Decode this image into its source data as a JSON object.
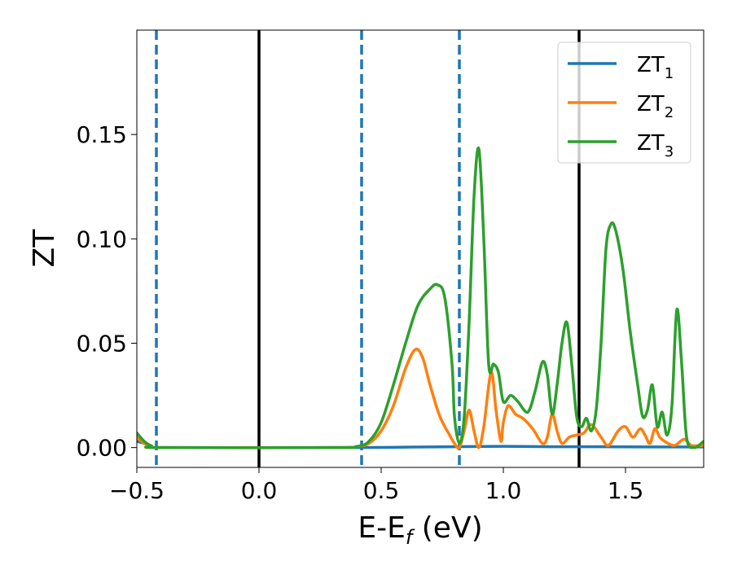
{
  "chart_data": {
    "type": "line",
    "xlabel": {
      "main": "E-E",
      "sub": "f",
      "unit": " (eV)"
    },
    "ylabel": "ZT",
    "xlim": [
      -0.5,
      1.82
    ],
    "ylim": [
      -0.0095,
      0.2
    ],
    "xticks": [
      {
        "value": -0.5,
        "label": "−0.5"
      },
      {
        "value": 0.0,
        "label": "0.0"
      },
      {
        "value": 0.5,
        "label": "0.5"
      },
      {
        "value": 1.0,
        "label": "1.0"
      },
      {
        "value": 1.5,
        "label": "1.5"
      }
    ],
    "yticks": [
      {
        "value": 0.0,
        "label": "0.00"
      },
      {
        "value": 0.05,
        "label": "0.05"
      },
      {
        "value": 0.1,
        "label": "0.10"
      },
      {
        "value": 0.15,
        "label": "0.15"
      }
    ],
    "grid": false,
    "legend_position": "top-right",
    "vlines": [
      {
        "x": -0.42,
        "style": "dashed",
        "color": "#1f77b4"
      },
      {
        "x": 0.0,
        "style": "solid",
        "color": "#000000"
      },
      {
        "x": 0.42,
        "style": "dashed",
        "color": "#1f77b4"
      },
      {
        "x": 0.82,
        "style": "dashed",
        "color": "#1f77b4"
      },
      {
        "x": 1.31,
        "style": "solid",
        "color": "#000000"
      }
    ],
    "series": [
      {
        "name": {
          "main": "ZT",
          "sub": "1"
        },
        "color": "#1f77b4",
        "points": [
          [
            -0.5,
            0.003
          ],
          [
            -0.47,
            0.002
          ],
          [
            -0.44,
            0.0005
          ],
          [
            -0.4,
            0.0
          ],
          [
            0.0,
            0.0
          ],
          [
            0.4,
            0.0
          ],
          [
            0.6,
            0.0002
          ],
          [
            0.8,
            0.0004
          ],
          [
            1.0,
            0.0006
          ],
          [
            1.2,
            0.0004
          ],
          [
            1.4,
            0.0004
          ],
          [
            1.6,
            0.0003
          ],
          [
            1.82,
            0.0003
          ]
        ]
      },
      {
        "name": {
          "main": "ZT",
          "sub": "2"
        },
        "color": "#ff7f0e",
        "points": [
          [
            -0.5,
            0.005
          ],
          [
            -0.47,
            0.002
          ],
          [
            -0.44,
            0.0005
          ],
          [
            -0.4,
            0.0
          ],
          [
            0.3,
            0.0
          ],
          [
            0.4,
            0.0005
          ],
          [
            0.45,
            0.002
          ],
          [
            0.5,
            0.008
          ],
          [
            0.55,
            0.02
          ],
          [
            0.6,
            0.038
          ],
          [
            0.64,
            0.047
          ],
          [
            0.67,
            0.043
          ],
          [
            0.7,
            0.03
          ],
          [
            0.74,
            0.015
          ],
          [
            0.78,
            0.006
          ],
          [
            0.8,
            0.002
          ],
          [
            0.82,
            0.0
          ],
          [
            0.84,
            0.008
          ],
          [
            0.86,
            0.018
          ],
          [
            0.88,
            0.008
          ],
          [
            0.9,
            0.0
          ],
          [
            0.92,
            0.01
          ],
          [
            0.95,
            0.036
          ],
          [
            0.97,
            0.018
          ],
          [
            0.99,
            0.003
          ],
          [
            1.0,
            0.012
          ],
          [
            1.02,
            0.02
          ],
          [
            1.05,
            0.016
          ],
          [
            1.08,
            0.014
          ],
          [
            1.12,
            0.009
          ],
          [
            1.16,
            0.002
          ],
          [
            1.18,
            0.005
          ],
          [
            1.2,
            0.016
          ],
          [
            1.22,
            0.008
          ],
          [
            1.24,
            0.002
          ],
          [
            1.27,
            0.005
          ],
          [
            1.3,
            0.006
          ],
          [
            1.33,
            0.007
          ],
          [
            1.36,
            0.011
          ],
          [
            1.4,
            0.005
          ],
          [
            1.43,
            0.001
          ],
          [
            1.47,
            0.008
          ],
          [
            1.5,
            0.01
          ],
          [
            1.53,
            0.005
          ],
          [
            1.56,
            0.009
          ],
          [
            1.58,
            0.006
          ],
          [
            1.6,
            0.002
          ],
          [
            1.62,
            0.009
          ],
          [
            1.64,
            0.005
          ],
          [
            1.66,
            0.003
          ],
          [
            1.7,
            0.001
          ],
          [
            1.74,
            0.004
          ],
          [
            1.77,
            0.001
          ],
          [
            1.82,
            0.001
          ]
        ]
      },
      {
        "name": {
          "main": "ZT",
          "sub": "3"
        },
        "color": "#2ca02c",
        "points": [
          [
            -0.5,
            0.007
          ],
          [
            -0.47,
            0.003
          ],
          [
            -0.44,
            0.0008
          ],
          [
            -0.4,
            0.0
          ],
          [
            0.3,
            0.0
          ],
          [
            0.4,
            0.0005
          ],
          [
            0.45,
            0.003
          ],
          [
            0.5,
            0.012
          ],
          [
            0.55,
            0.03
          ],
          [
            0.6,
            0.05
          ],
          [
            0.65,
            0.068
          ],
          [
            0.7,
            0.076
          ],
          [
            0.73,
            0.078
          ],
          [
            0.76,
            0.072
          ],
          [
            0.79,
            0.04
          ],
          [
            0.8,
            0.015
          ],
          [
            0.82,
            0.002
          ],
          [
            0.84,
            0.015
          ],
          [
            0.86,
            0.06
          ],
          [
            0.88,
            0.12
          ],
          [
            0.9,
            0.143
          ],
          [
            0.92,
            0.1
          ],
          [
            0.94,
            0.04
          ],
          [
            0.96,
            0.04
          ],
          [
            0.98,
            0.036
          ],
          [
            1.0,
            0.022
          ],
          [
            1.03,
            0.025
          ],
          [
            1.06,
            0.022
          ],
          [
            1.1,
            0.017
          ],
          [
            1.13,
            0.027
          ],
          [
            1.16,
            0.041
          ],
          [
            1.18,
            0.035
          ],
          [
            1.2,
            0.016
          ],
          [
            1.22,
            0.03
          ],
          [
            1.24,
            0.05
          ],
          [
            1.26,
            0.06
          ],
          [
            1.28,
            0.04
          ],
          [
            1.3,
            0.015
          ],
          [
            1.32,
            0.01
          ],
          [
            1.34,
            0.014
          ],
          [
            1.36,
            0.008
          ],
          [
            1.38,
            0.018
          ],
          [
            1.4,
            0.05
          ],
          [
            1.42,
            0.095
          ],
          [
            1.44,
            0.107
          ],
          [
            1.46,
            0.104
          ],
          [
            1.49,
            0.085
          ],
          [
            1.52,
            0.055
          ],
          [
            1.55,
            0.03
          ],
          [
            1.57,
            0.015
          ],
          [
            1.59,
            0.018
          ],
          [
            1.61,
            0.03
          ],
          [
            1.63,
            0.01
          ],
          [
            1.65,
            0.017
          ],
          [
            1.67,
            0.006
          ],
          [
            1.69,
            0.02
          ],
          [
            1.71,
            0.066
          ],
          [
            1.73,
            0.04
          ],
          [
            1.75,
            0.005
          ],
          [
            1.78,
            0.0
          ],
          [
            1.82,
            0.003
          ]
        ]
      }
    ]
  }
}
